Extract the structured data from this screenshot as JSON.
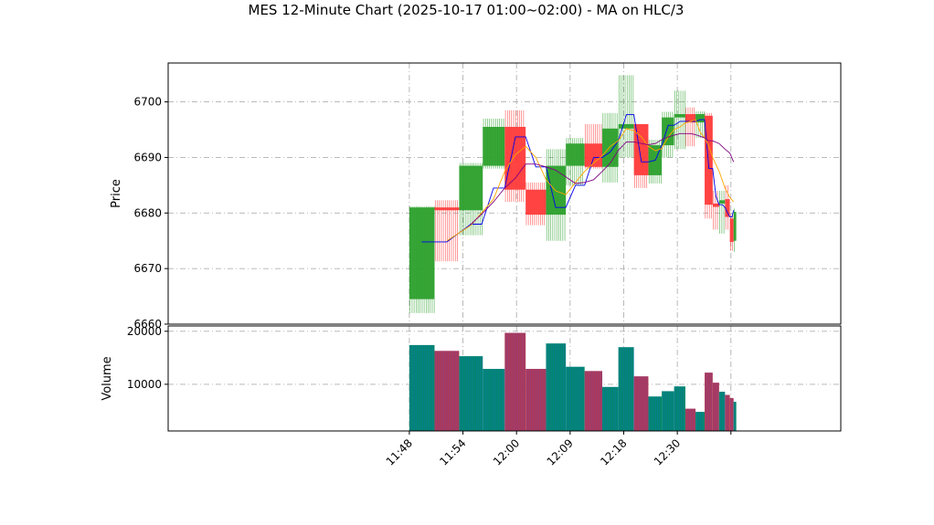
{
  "chart_data": {
    "type": "bar",
    "subtype": "ohlc-candlestick-with-volume",
    "title": "MES 12-Minute Chart (2025-10-17 01:00~02:00) - MA on HLC/3",
    "price_panel": {
      "ylabel": "Price",
      "ylim": [
        6660,
        6707
      ],
      "yticks": [
        6660,
        6670,
        6680,
        6690,
        6700
      ],
      "grid": true
    },
    "volume_panel": {
      "ylabel": "Volume",
      "ylim": [
        1200,
        21000
      ],
      "yticks": [
        10000,
        20000
      ],
      "grid": true
    },
    "xlim": [
      11.35,
      12.605
    ],
    "x_ticks": [
      {
        "x": 11.8,
        "label": "11:48"
      },
      {
        "x": 11.9,
        "label": "11:54"
      },
      {
        "x": 12.0,
        "label": "12:00"
      },
      {
        "x": 12.1,
        "label": "12:09"
      },
      {
        "x": 12.2,
        "label": "12:18"
      },
      {
        "x": 12.3,
        "label": "12:30"
      },
      {
        "x": 12.4,
        "label": ""
      }
    ],
    "colors": {
      "up": "#2ca02c",
      "down": "#ff3b3b",
      "volume_up": "#00876b",
      "volume_down": "#b03a55",
      "ma_fast": "#0000ee",
      "ma_mid": "#ffa500",
      "ma_slow": "#800080",
      "grid": "#b0b0b0"
    },
    "candles": [
      {
        "x0": 11.8,
        "x1": 11.847,
        "open": 6664.5,
        "close": 6681.0,
        "high": 6681.2,
        "low": 6662.0,
        "volume": 17400
      },
      {
        "x0": 11.847,
        "x1": 11.893,
        "open": 6681.0,
        "close": 6680.5,
        "high": 6682.3,
        "low": 6671.3,
        "volume": 16300
      },
      {
        "x0": 11.893,
        "x1": 11.937,
        "open": 6680.5,
        "close": 6688.5,
        "high": 6689.0,
        "low": 6676.0,
        "volume": 15300
      },
      {
        "x0": 11.937,
        "x1": 11.978,
        "open": 6688.5,
        "close": 6695.5,
        "high": 6697.0,
        "low": 6688.0,
        "volume": 12900
      },
      {
        "x0": 11.978,
        "x1": 12.017,
        "open": 6695.5,
        "close": 6684.2,
        "high": 6698.5,
        "low": 6682.0,
        "volume": 19700
      },
      {
        "x0": 12.017,
        "x1": 12.055,
        "open": 6684.2,
        "close": 6679.7,
        "high": 6685.5,
        "low": 6677.8,
        "volume": 12900
      },
      {
        "x0": 12.055,
        "x1": 12.092,
        "open": 6679.7,
        "close": 6688.5,
        "high": 6691.5,
        "low": 6675.0,
        "volume": 17700
      },
      {
        "x0": 12.092,
        "x1": 12.127,
        "open": 6688.5,
        "close": 6692.5,
        "high": 6693.5,
        "low": 6685.0,
        "volume": 13300
      },
      {
        "x0": 12.127,
        "x1": 12.16,
        "open": 6692.5,
        "close": 6688.3,
        "high": 6696.0,
        "low": 6688.0,
        "volume": 12500
      },
      {
        "x0": 12.16,
        "x1": 12.19,
        "open": 6688.3,
        "close": 6695.2,
        "high": 6698.0,
        "low": 6685.5,
        "volume": 9500
      },
      {
        "x0": 12.19,
        "x1": 12.219,
        "open": 6695.2,
        "close": 6696.0,
        "high": 6704.8,
        "low": 6690.0,
        "volume": 17000
      },
      {
        "x0": 12.219,
        "x1": 12.246,
        "open": 6696.0,
        "close": 6686.8,
        "high": 6696.0,
        "low": 6684.5,
        "volume": 11500
      },
      {
        "x0": 12.246,
        "x1": 12.271,
        "open": 6686.8,
        "close": 6692.2,
        "high": 6693.2,
        "low": 6685.3,
        "volume": 7700
      },
      {
        "x0": 12.271,
        "x1": 12.294,
        "open": 6692.2,
        "close": 6697.2,
        "high": 6698.2,
        "low": 6690.0,
        "volume": 8700
      },
      {
        "x0": 12.294,
        "x1": 12.315,
        "open": 6697.2,
        "close": 6697.8,
        "high": 6702.0,
        "low": 6691.5,
        "volume": 9600
      },
      {
        "x0": 12.315,
        "x1": 12.334,
        "open": 6697.8,
        "close": 6696.3,
        "high": 6699.0,
        "low": 6692.0,
        "volume": 5400
      },
      {
        "x0": 12.334,
        "x1": 12.351,
        "open": 6696.3,
        "close": 6697.8,
        "high": 6698.3,
        "low": 6693.5,
        "volume": 4800
      },
      {
        "x0": 12.351,
        "x1": 12.366,
        "open": 6697.5,
        "close": 6681.5,
        "high": 6698.0,
        "low": 6679.0,
        "volume": 12200
      },
      {
        "x0": 12.366,
        "x1": 12.378,
        "open": 6681.5,
        "close": 6681.3,
        "high": 6684.0,
        "low": 6677.0,
        "volume": 10300
      },
      {
        "x0": 12.378,
        "x1": 12.389,
        "open": 6681.8,
        "close": 6682.2,
        "high": 6684.0,
        "low": 6676.3,
        "volume": 8600
      },
      {
        "x0": 12.389,
        "x1": 12.398,
        "open": 6682.5,
        "close": 6679.3,
        "high": 6685.0,
        "low": 6677.0,
        "volume": 8000
      },
      {
        "x0": 12.398,
        "x1": 12.405,
        "open": 6679.0,
        "close": 6674.8,
        "high": 6679.8,
        "low": 6673.2,
        "volume": 7400
      },
      {
        "x0": 12.405,
        "x1": 12.41,
        "open": 6675.0,
        "close": 6680.2,
        "high": 6680.8,
        "low": 6673.0,
        "volume": 6700
      }
    ],
    "moving_averages": [
      {
        "key": "ma_fast",
        "points": [
          [
            11.823,
            6674.8
          ],
          [
            11.87,
            6674.8
          ],
          [
            11.915,
            6678.0
          ],
          [
            11.935,
            6678.0
          ],
          [
            11.957,
            6684.5
          ],
          [
            11.978,
            6684.5
          ],
          [
            11.998,
            6693.7
          ],
          [
            12.017,
            6693.7
          ],
          [
            12.036,
            6688.3
          ],
          [
            12.055,
            6688.3
          ],
          [
            12.073,
            6681.0
          ],
          [
            12.092,
            6681.0
          ],
          [
            12.11,
            6685.0
          ],
          [
            12.127,
            6685.0
          ],
          [
            12.144,
            6690.0
          ],
          [
            12.16,
            6690.0
          ],
          [
            12.175,
            6691.0
          ],
          [
            12.19,
            6693.0
          ],
          [
            12.205,
            6697.7
          ],
          [
            12.219,
            6697.7
          ],
          [
            12.233,
            6689.2
          ],
          [
            12.246,
            6689.2
          ],
          [
            12.259,
            6689.5
          ],
          [
            12.271,
            6692.2
          ],
          [
            12.283,
            6695.8
          ],
          [
            12.294,
            6695.8
          ],
          [
            12.305,
            6696.5
          ],
          [
            12.315,
            6696.5
          ],
          [
            12.325,
            6696.5
          ],
          [
            12.334,
            6696.5
          ],
          [
            12.343,
            6696.8
          ],
          [
            12.351,
            6696.8
          ],
          [
            12.359,
            6688.0
          ],
          [
            12.366,
            6688.0
          ],
          [
            12.372,
            6683.0
          ],
          [
            12.378,
            6681.5
          ],
          [
            12.384,
            6681.5
          ],
          [
            12.389,
            6681.0
          ],
          [
            12.394,
            6680.0
          ],
          [
            12.398,
            6679.3
          ],
          [
            12.402,
            6679.3
          ],
          [
            12.405,
            6680.5
          ]
        ]
      },
      {
        "key": "ma_mid",
        "points": [
          [
            11.87,
            6675.0
          ],
          [
            11.915,
            6677.8
          ],
          [
            11.957,
            6682.5
          ],
          [
            11.978,
            6687.5
          ],
          [
            11.998,
            6690.5
          ],
          [
            12.017,
            6692.0
          ],
          [
            12.036,
            6690.0
          ],
          [
            12.055,
            6686.0
          ],
          [
            12.073,
            6684.0
          ],
          [
            12.092,
            6683.3
          ],
          [
            12.11,
            6685.5
          ],
          [
            12.127,
            6687.5
          ],
          [
            12.144,
            6689.0
          ],
          [
            12.16,
            6690.3
          ],
          [
            12.175,
            6692.0
          ],
          [
            12.19,
            6693.0
          ],
          [
            12.205,
            6695.2
          ],
          [
            12.219,
            6694.8
          ],
          [
            12.233,
            6693.7
          ],
          [
            12.246,
            6692.0
          ],
          [
            12.259,
            6691.2
          ],
          [
            12.271,
            6691.6
          ],
          [
            12.283,
            6693.7
          ],
          [
            12.294,
            6695.0
          ],
          [
            12.305,
            6695.5
          ],
          [
            12.315,
            6696.2
          ],
          [
            12.325,
            6696.5
          ],
          [
            12.334,
            6696.8
          ],
          [
            12.343,
            6694.5
          ],
          [
            12.351,
            6693.5
          ],
          [
            12.359,
            6692.0
          ],
          [
            12.366,
            6690.0
          ],
          [
            12.378,
            6687.5
          ],
          [
            12.389,
            6684.5
          ],
          [
            12.398,
            6682.8
          ],
          [
            12.405,
            6682.0
          ]
        ]
      },
      {
        "key": "ma_slow",
        "points": [
          [
            11.915,
            6678.0
          ],
          [
            11.935,
            6679.8
          ],
          [
            11.957,
            6682.0
          ],
          [
            11.978,
            6684.5
          ],
          [
            11.998,
            6686.3
          ],
          [
            12.017,
            6688.8
          ],
          [
            12.036,
            6688.8
          ],
          [
            12.055,
            6688.3
          ],
          [
            12.073,
            6687.7
          ],
          [
            12.092,
            6686.5
          ],
          [
            12.11,
            6685.3
          ],
          [
            12.127,
            6685.5
          ],
          [
            12.144,
            6686.0
          ],
          [
            12.16,
            6687.5
          ],
          [
            12.175,
            6689.0
          ],
          [
            12.19,
            6691.3
          ],
          [
            12.205,
            6692.8
          ],
          [
            12.219,
            6692.8
          ],
          [
            12.233,
            6692.5
          ],
          [
            12.246,
            6692.3
          ],
          [
            12.259,
            6692.5
          ],
          [
            12.271,
            6693.2
          ],
          [
            12.283,
            6693.7
          ],
          [
            12.294,
            6694.0
          ],
          [
            12.305,
            6694.3
          ],
          [
            12.315,
            6694.3
          ],
          [
            12.325,
            6694.3
          ],
          [
            12.334,
            6694.1
          ],
          [
            12.343,
            6693.8
          ],
          [
            12.351,
            6693.5
          ],
          [
            12.359,
            6693.0
          ],
          [
            12.366,
            6693.0
          ],
          [
            12.378,
            6692.5
          ],
          [
            12.389,
            6691.5
          ],
          [
            12.398,
            6690.8
          ],
          [
            12.405,
            6689.2
          ]
        ]
      }
    ]
  }
}
